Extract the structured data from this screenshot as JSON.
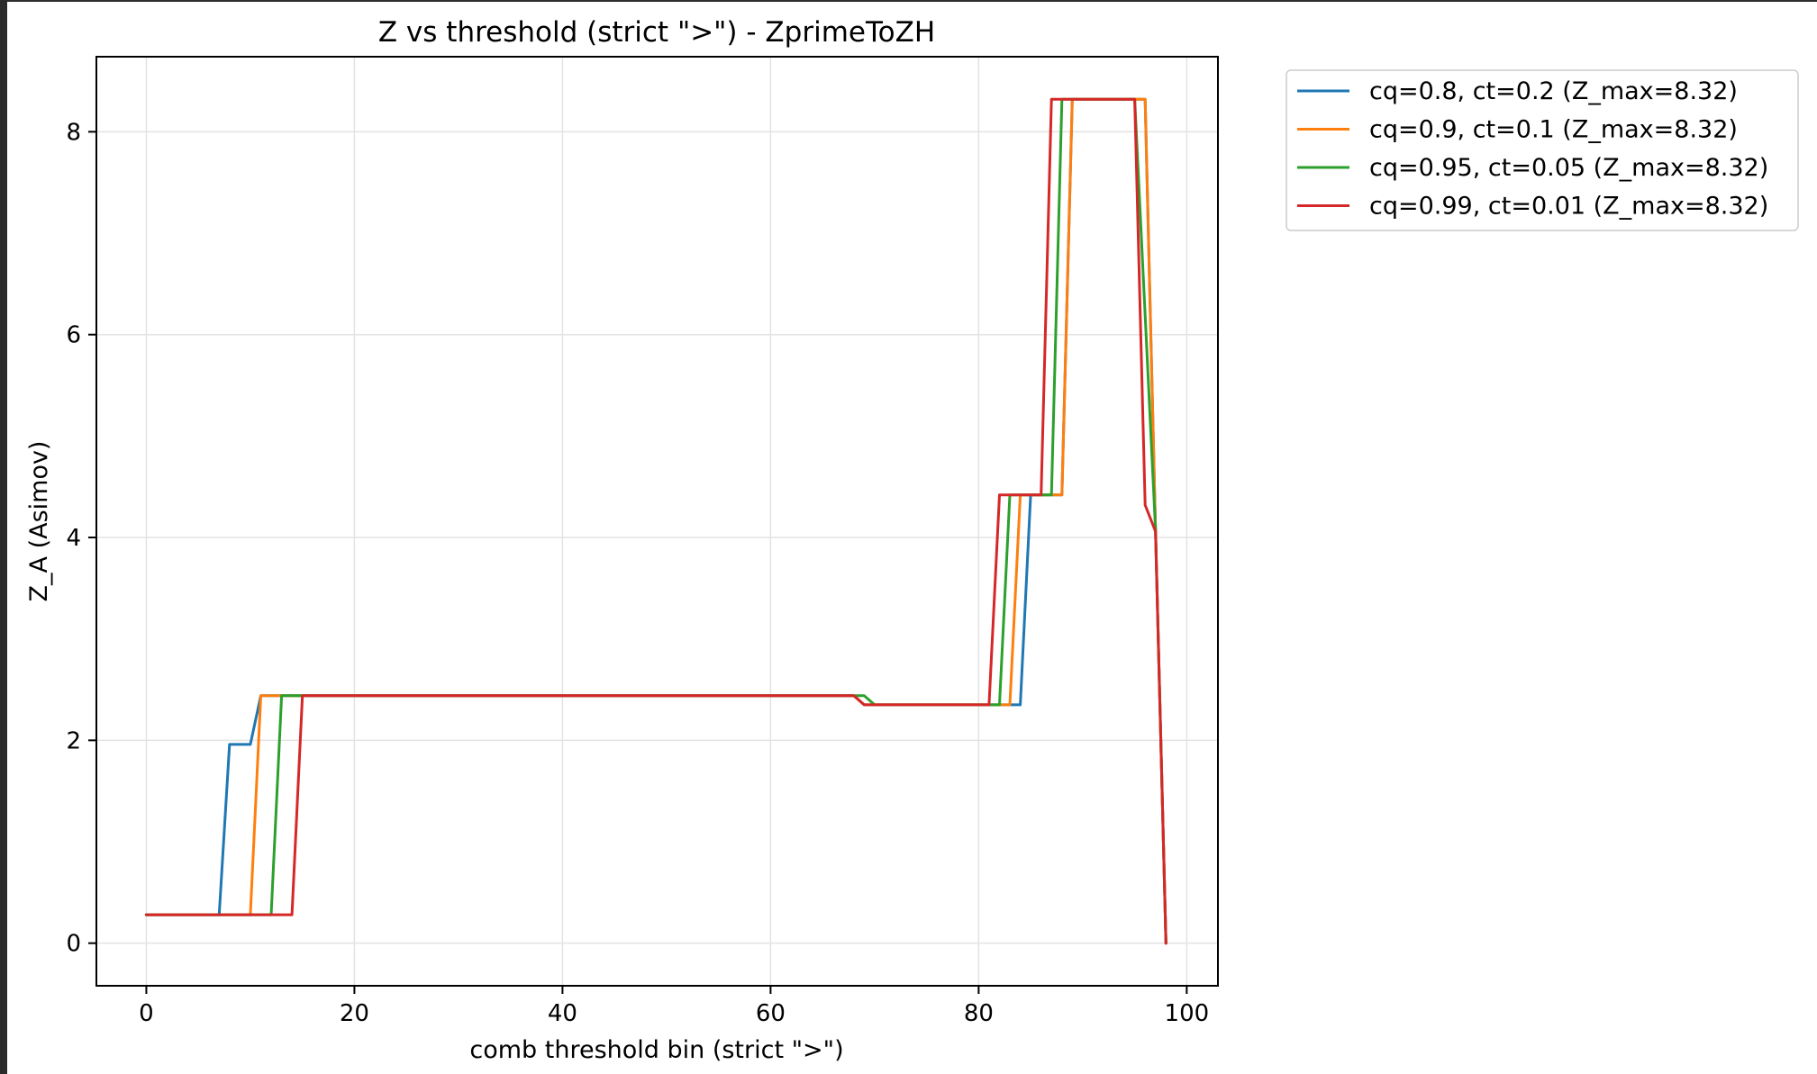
{
  "chart_data": {
    "type": "line",
    "title": "Z vs threshold (strict \">\") - ZprimeToZH",
    "xlabel": "comb threshold bin (strict \">\")",
    "ylabel": "Z_A (Asimov)",
    "xlim": [
      -4.8,
      103.0
    ],
    "ylim": [
      -0.42,
      8.74
    ],
    "xticks": [
      0,
      20,
      40,
      60,
      80,
      100
    ],
    "yticks": [
      0,
      2,
      4,
      6,
      8
    ],
    "grid": true,
    "legend_position": "outside-top-right",
    "series": [
      {
        "name": "cq=0.8, ct=0.2 (Z_max=8.32)",
        "color": "#1f77b4",
        "points": [
          [
            0,
            0.28
          ],
          [
            7,
            0.28
          ],
          [
            8,
            1.96
          ],
          [
            10,
            1.96
          ],
          [
            11,
            2.44
          ],
          [
            68,
            2.44
          ],
          [
            69,
            2.35
          ],
          [
            84,
            2.35
          ],
          [
            85,
            4.42
          ],
          [
            88,
            4.42
          ],
          [
            89,
            8.32
          ],
          [
            96,
            8.32
          ],
          [
            97,
            4.08
          ],
          [
            98,
            0.0
          ]
        ]
      },
      {
        "name": "cq=0.9, ct=0.1 (Z_max=8.32)",
        "color": "#ff7f0e",
        "points": [
          [
            0,
            0.28
          ],
          [
            10,
            0.28
          ],
          [
            11,
            2.44
          ],
          [
            68,
            2.44
          ],
          [
            69,
            2.35
          ],
          [
            83,
            2.35
          ],
          [
            84,
            4.42
          ],
          [
            88,
            4.42
          ],
          [
            89,
            8.32
          ],
          [
            96,
            8.32
          ],
          [
            97,
            4.08
          ],
          [
            98,
            0.0
          ]
        ]
      },
      {
        "name": "cq=0.95, ct=0.05 (Z_max=8.32)",
        "color": "#2ca02c",
        "points": [
          [
            0,
            0.28
          ],
          [
            12,
            0.28
          ],
          [
            13,
            2.44
          ],
          [
            69,
            2.44
          ],
          [
            70,
            2.35
          ],
          [
            82,
            2.35
          ],
          [
            83,
            4.42
          ],
          [
            87,
            4.42
          ],
          [
            88,
            8.32
          ],
          [
            95,
            8.32
          ],
          [
            97,
            4.08
          ],
          [
            98,
            0.0
          ]
        ]
      },
      {
        "name": "cq=0.99, ct=0.01 (Z_max=8.32)",
        "color": "#d62728",
        "points": [
          [
            0,
            0.28
          ],
          [
            14,
            0.28
          ],
          [
            15,
            2.44
          ],
          [
            68,
            2.44
          ],
          [
            69,
            2.35
          ],
          [
            81,
            2.35
          ],
          [
            82,
            4.42
          ],
          [
            86,
            4.42
          ],
          [
            87,
            8.32
          ],
          [
            95,
            8.32
          ],
          [
            96,
            4.32
          ],
          [
            97,
            4.06
          ],
          [
            98,
            0.0
          ]
        ]
      }
    ]
  }
}
